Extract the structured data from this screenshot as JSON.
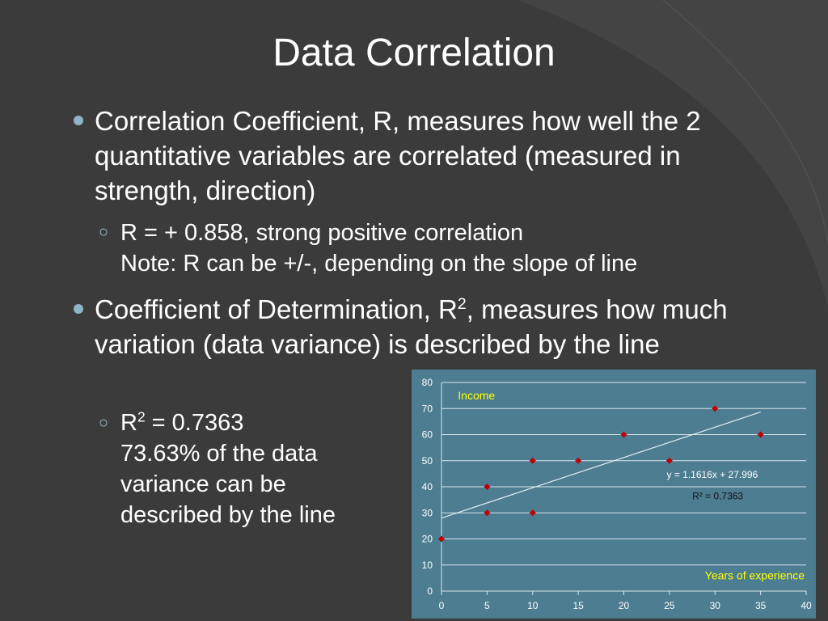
{
  "slide": {
    "title": "Data Correlation",
    "bullet1": "Correlation Coefficient, R, measures how well the 2 quantitative variables are correlated (measured in strength, direction)",
    "sub1_line1": "R = + 0.858, strong positive correlation",
    "sub1_line2": "Note: R can be +/-, depending on the slope of line",
    "bullet2_before": "Coefficient of Determination, R",
    "bullet2_sup": "2",
    "bullet2_after": ", measures how much variation (data variance) is described by the line",
    "sub2_r": "R",
    "sub2_sup": "2",
    "sub2_value": " = 0.7363",
    "sub2_text": "73.63% of the data variance can be described by the line"
  },
  "colors": {
    "background": "#3b3b3b",
    "chart_background": "#4c7d91",
    "marker": "#c00000",
    "label_yellow": "#ffff00",
    "bullet": "#8fb4c6"
  },
  "chart_data": {
    "type": "scatter",
    "xlabel": "Years of experience",
    "ylabel": "Income",
    "xlim": [
      0,
      40
    ],
    "ylim": [
      0,
      80
    ],
    "x_ticks": [
      0,
      5,
      10,
      15,
      20,
      25,
      30,
      35,
      40
    ],
    "y_ticks": [
      0,
      10,
      20,
      30,
      40,
      50,
      60,
      70,
      80
    ],
    "grid": "horizontal",
    "points": [
      {
        "x": 0,
        "y": 20
      },
      {
        "x": 5,
        "y": 30
      },
      {
        "x": 5,
        "y": 40
      },
      {
        "x": 10,
        "y": 30
      },
      {
        "x": 10,
        "y": 50
      },
      {
        "x": 15,
        "y": 50
      },
      {
        "x": 20,
        "y": 60
      },
      {
        "x": 25,
        "y": 50
      },
      {
        "x": 30,
        "y": 70
      },
      {
        "x": 35,
        "y": 60
      }
    ],
    "trendline": {
      "slope": 1.1616,
      "intercept": 27.996,
      "x_range": [
        0,
        35
      ]
    },
    "equation_label": "y = 1.1616x + 27.996",
    "r2_label": "R² = 0.7363"
  }
}
